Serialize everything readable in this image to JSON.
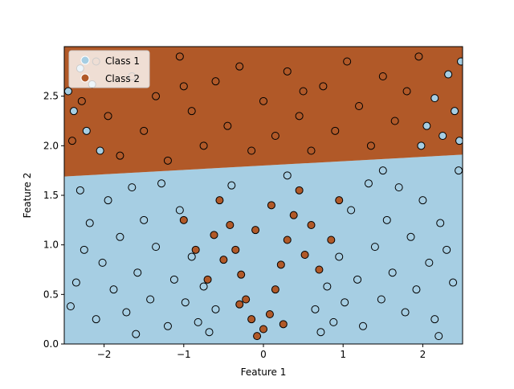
{
  "chart_data": {
    "type": "scatter",
    "title": "",
    "xlabel": "Feature 1",
    "ylabel": "Feature 2",
    "xlim": [
      -2.5,
      2.5
    ],
    "ylim": [
      0.0,
      3.0
    ],
    "x_ticks": [
      -2,
      -1,
      0,
      1,
      2
    ],
    "x_tick_labels": [
      "−2",
      "−1",
      "0",
      "1",
      "2"
    ],
    "y_ticks": [
      0.0,
      0.5,
      1.0,
      1.5,
      2.0,
      2.5
    ],
    "y_tick_labels": [
      "0.0",
      "0.5",
      "1.0",
      "1.5",
      "2.0",
      "2.5"
    ],
    "grid": false,
    "legend_position": "top-left",
    "decision_boundary": {
      "x": [
        -2.5,
        2.5
      ],
      "y": [
        1.69,
        1.91
      ],
      "region_below_color": "#a6cee3",
      "region_above_color": "#b15928"
    },
    "series": [
      {
        "name": "Class 1",
        "color": "#a6cee3",
        "points": [
          [
            -2.42,
            0.38
          ],
          [
            -2.35,
            0.62
          ],
          [
            -2.25,
            0.95
          ],
          [
            -2.18,
            1.22
          ],
          [
            -2.1,
            0.25
          ],
          [
            -2.02,
            0.82
          ],
          [
            -1.95,
            1.45
          ],
          [
            -1.88,
            0.55
          ],
          [
            -1.8,
            1.08
          ],
          [
            -1.72,
            0.32
          ],
          [
            -1.65,
            1.58
          ],
          [
            -1.58,
            0.72
          ],
          [
            -1.5,
            1.25
          ],
          [
            -1.42,
            0.45
          ],
          [
            -1.35,
            0.98
          ],
          [
            -1.28,
            1.62
          ],
          [
            -1.2,
            0.18
          ],
          [
            -1.12,
            0.65
          ],
          [
            -1.05,
            1.35
          ],
          [
            -0.98,
            0.42
          ],
          [
            -0.9,
            0.88
          ],
          [
            -0.82,
            0.22
          ],
          [
            -0.75,
            0.58
          ],
          [
            -0.68,
            0.12
          ],
          [
            -0.6,
            0.35
          ],
          [
            0.65,
            0.35
          ],
          [
            0.72,
            0.12
          ],
          [
            0.8,
            0.58
          ],
          [
            0.88,
            0.22
          ],
          [
            0.95,
            0.88
          ],
          [
            1.02,
            0.42
          ],
          [
            1.1,
            1.35
          ],
          [
            1.18,
            0.65
          ],
          [
            1.25,
            0.18
          ],
          [
            1.32,
            1.62
          ],
          [
            1.4,
            0.98
          ],
          [
            1.48,
            0.45
          ],
          [
            1.55,
            1.25
          ],
          [
            1.62,
            0.72
          ],
          [
            1.7,
            1.58
          ],
          [
            1.78,
            0.32
          ],
          [
            1.85,
            1.08
          ],
          [
            1.92,
            0.55
          ],
          [
            2.0,
            1.45
          ],
          [
            2.08,
            0.82
          ],
          [
            2.15,
            0.25
          ],
          [
            2.22,
            1.22
          ],
          [
            2.3,
            0.95
          ],
          [
            2.38,
            0.62
          ],
          [
            2.45,
            1.75
          ],
          [
            -2.3,
            1.55
          ],
          [
            -1.6,
            0.1
          ],
          [
            -0.4,
            1.6
          ],
          [
            0.3,
            1.7
          ],
          [
            1.5,
            1.75
          ],
          [
            2.2,
            0.08
          ],
          [
            -2.45,
            2.55
          ],
          [
            -2.38,
            2.35
          ],
          [
            -2.3,
            2.78
          ],
          [
            -2.22,
            2.15
          ],
          [
            -2.15,
            2.62
          ],
          [
            2.05,
            2.2
          ],
          [
            2.15,
            2.48
          ],
          [
            2.25,
            2.1
          ],
          [
            2.32,
            2.72
          ],
          [
            2.4,
            2.35
          ],
          [
            2.46,
            2.05
          ],
          [
            1.98,
            2.0
          ],
          [
            -2.05,
            1.95
          ],
          [
            2.48,
            2.85
          ]
        ]
      },
      {
        "name": "Class 2",
        "color": "#b15928",
        "points": [
          [
            -2.4,
            2.05
          ],
          [
            -2.28,
            2.45
          ],
          [
            -2.1,
            2.85
          ],
          [
            -1.95,
            2.3
          ],
          [
            -1.8,
            1.9
          ],
          [
            -1.65,
            2.7
          ],
          [
            -1.5,
            2.15
          ],
          [
            -1.35,
            2.5
          ],
          [
            -1.2,
            1.85
          ],
          [
            -1.05,
            2.9
          ],
          [
            -0.9,
            2.35
          ],
          [
            -0.75,
            2.0
          ],
          [
            -0.6,
            2.65
          ],
          [
            -0.45,
            2.2
          ],
          [
            -0.3,
            2.8
          ],
          [
            -0.15,
            1.95
          ],
          [
            0.0,
            2.45
          ],
          [
            0.15,
            2.1
          ],
          [
            0.3,
            2.75
          ],
          [
            0.45,
            2.3
          ],
          [
            0.6,
            1.95
          ],
          [
            0.75,
            2.6
          ],
          [
            0.9,
            2.15
          ],
          [
            1.05,
            2.85
          ],
          [
            1.2,
            2.4
          ],
          [
            1.35,
            2.0
          ],
          [
            1.5,
            2.7
          ],
          [
            1.65,
            2.25
          ],
          [
            1.8,
            2.55
          ],
          [
            1.95,
            2.9
          ],
          [
            -1.0,
            2.6
          ],
          [
            0.5,
            2.55
          ],
          [
            -0.55,
            1.45
          ],
          [
            -0.42,
            1.2
          ],
          [
            -0.35,
            0.95
          ],
          [
            -0.28,
            0.7
          ],
          [
            -0.22,
            0.45
          ],
          [
            -0.15,
            0.25
          ],
          [
            -0.08,
            0.08
          ],
          [
            0.0,
            0.15
          ],
          [
            0.08,
            0.3
          ],
          [
            0.15,
            0.55
          ],
          [
            0.22,
            0.8
          ],
          [
            0.3,
            1.05
          ],
          [
            0.38,
            1.3
          ],
          [
            0.45,
            1.55
          ],
          [
            0.52,
            0.9
          ],
          [
            -0.5,
            0.85
          ],
          [
            -0.62,
            1.1
          ],
          [
            0.6,
            1.2
          ],
          [
            0.7,
            0.75
          ],
          [
            -0.7,
            0.65
          ],
          [
            0.1,
            1.4
          ],
          [
            -0.1,
            1.15
          ],
          [
            0.25,
            0.2
          ],
          [
            -0.3,
            0.4
          ],
          [
            -1.0,
            1.25
          ],
          [
            0.95,
            1.45
          ],
          [
            -0.85,
            0.95
          ],
          [
            0.85,
            1.05
          ]
        ]
      }
    ]
  }
}
